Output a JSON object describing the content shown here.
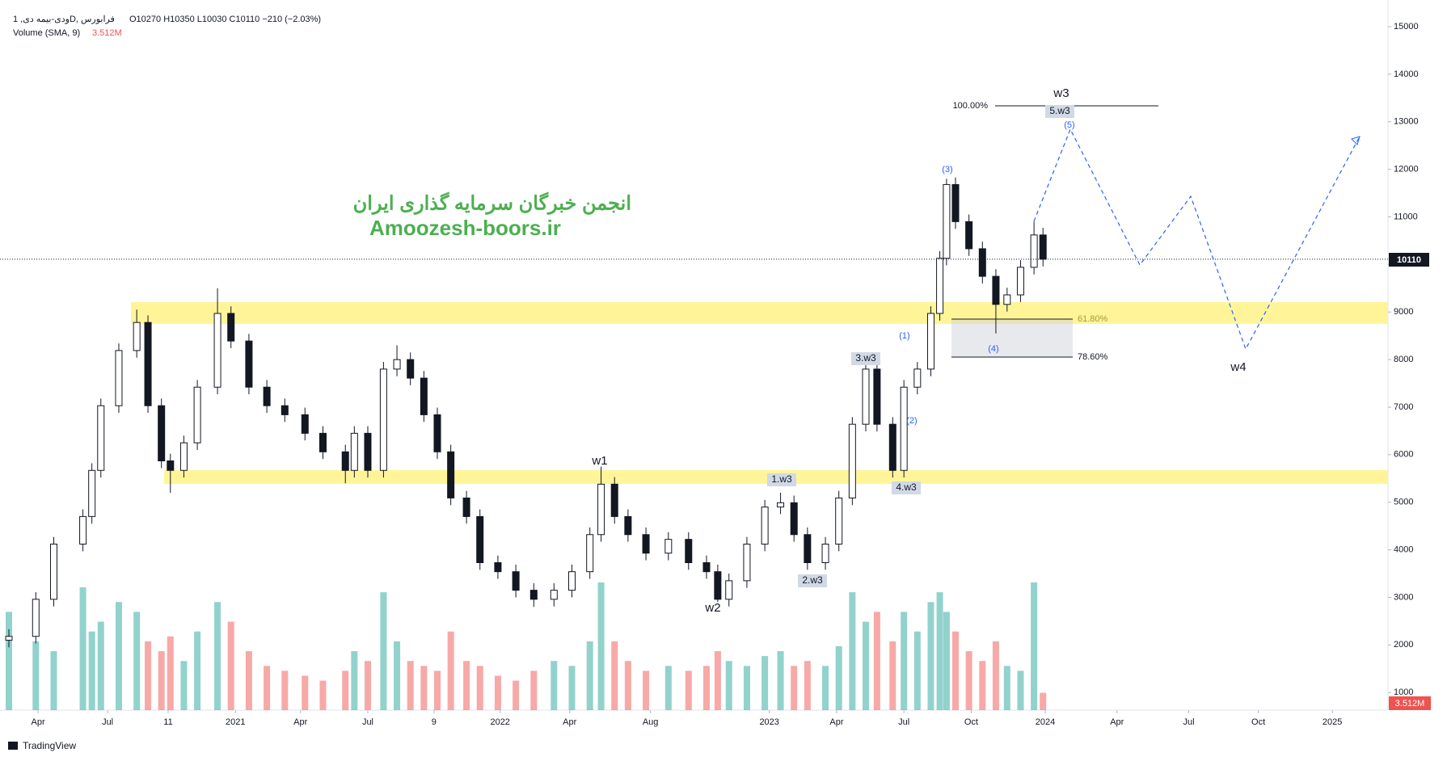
{
  "header": {
    "symbol": "ودی-بیمه دی, 1D, فرابورس",
    "ohlc": "O10270  H10350  L10030  C10110  −210 (−2.03%)",
    "volume_indicator": "Volume (SMA, 9)",
    "volume_last": "3.512M",
    "last_price": "10110"
  },
  "watermark": {
    "line1": "انجمن خبرگان سرمایه گذاری ایران",
    "line2": "Amoozesh-boors.ir"
  },
  "footer": {
    "brand": "TradingView"
  },
  "annotations": {
    "w3": "w3",
    "w3_5": "5.w3",
    "p5": "(5)",
    "p3": "(3)",
    "p1": "(1)",
    "w3_3": "3.w3",
    "p2": "(2)",
    "w3_1": "1.w3",
    "w3_4": "4.w3",
    "w1": "w1",
    "w2": "w2",
    "w3_2": "2.w3",
    "p4": "(4)",
    "w4": "w4",
    "fib100": "100.00%",
    "fib618": "61.80%",
    "fib786": "78.60%"
  },
  "chart_data": {
    "type": "candlestick",
    "x": [
      1.7,
      2.9,
      3.7,
      5.0,
      5.4,
      5.8,
      6.6,
      7.4,
      7.9,
      8.5,
      8.9,
      9.5,
      10.1,
      11.0,
      11.6,
      12.4,
      13.2,
      14.0,
      14.9,
      15.7,
      16.7,
      17.1,
      17.7,
      18.4,
      19.0,
      19.6,
      20.2,
      20.8,
      21.4,
      22.1,
      22.7,
      23.5,
      24.3,
      25.1,
      26.0,
      26.8,
      27.6,
      28.1,
      28.7,
      29.3,
      30.1,
      31.1,
      32.0,
      32.8,
      33.3,
      33.8,
      34.6,
      35.4,
      36.1,
      36.7,
      37.3,
      38.1,
      38.7,
      39.3,
      39.9,
      40.4,
      41.1,
      41.6,
      42.2,
      42.8,
      43.2,
      43.5,
      43.9,
      44.5,
      45.1,
      45.7,
      46.2,
      46.8,
      47.4,
      47.8
    ],
    "open": [
      2100,
      2180,
      2960,
      4120,
      4700,
      5670,
      7030,
      8190,
      8780,
      7030,
      5870,
      5670,
      6250,
      7420,
      8970,
      8390,
      7420,
      7030,
      6840,
      6450,
      6060,
      5670,
      6450,
      5670,
      7800,
      8000,
      7610,
      6840,
      6060,
      5090,
      4700,
      3730,
      3540,
      3150,
      2960,
      3150,
      3540,
      4320,
      5380,
      4700,
      4320,
      3930,
      4220,
      3730,
      3540,
      2960,
      3350,
      4120,
      4900,
      4990,
      4320,
      3730,
      4120,
      5090,
      6640,
      7800,
      6640,
      5670,
      7420,
      7800,
      8970,
      10130,
      11680,
      10900,
      10330,
      9750,
      9160,
      9360,
      9940,
      10620
    ],
    "high": [
      2330,
      3110,
      4270,
      4850,
      5820,
      7180,
      8340,
      9050,
      8930,
      7180,
      6020,
      6400,
      7570,
      9500,
      9120,
      8540,
      7570,
      7180,
      6990,
      6600,
      6210,
      6600,
      6600,
      7950,
      8300,
      8150,
      7760,
      6990,
      6210,
      5240,
      4850,
      3880,
      3690,
      3300,
      3300,
      3690,
      4470,
      5750,
      5530,
      4850,
      4470,
      4370,
      4370,
      3880,
      3690,
      3500,
      4270,
      5050,
      5200,
      5140,
      4470,
      4270,
      5240,
      6790,
      8000,
      7950,
      6790,
      7570,
      7950,
      9120,
      10280,
      11800,
      11830,
      11050,
      10480,
      9900,
      9510,
      10090,
      10900,
      10770
    ],
    "low": [
      1950,
      2030,
      2810,
      3970,
      4550,
      5520,
      6880,
      8040,
      6880,
      5720,
      5200,
      5520,
      6100,
      7270,
      8240,
      7270,
      6880,
      6690,
      6300,
      5910,
      5400,
      5520,
      5520,
      5520,
      7650,
      7460,
      6690,
      5910,
      4940,
      4550,
      3580,
      3390,
      3000,
      2800,
      2810,
      3000,
      3390,
      4170,
      4550,
      4170,
      3780,
      3780,
      3580,
      3390,
      2900,
      2810,
      3200,
      3970,
      4750,
      4170,
      3580,
      3580,
      3970,
      4940,
      6490,
      6490,
      5520,
      5520,
      7270,
      7650,
      8820,
      9980,
      10750,
      10180,
      9600,
      8550,
      9010,
      9210,
      9790,
      9960
    ],
    "close": [
      2180,
      2960,
      4120,
      4700,
      5670,
      7030,
      8190,
      8780,
      7030,
      5870,
      5670,
      6250,
      7420,
      8970,
      8390,
      7420,
      7030,
      6840,
      6450,
      6060,
      5670,
      6450,
      5670,
      7800,
      8000,
      7610,
      6840,
      6060,
      5090,
      4700,
      3730,
      3540,
      3150,
      2960,
      3150,
      3540,
      4320,
      5380,
      4700,
      4320,
      3930,
      4220,
      3730,
      3540,
      2960,
      3350,
      4120,
      4900,
      4990,
      4320,
      3730,
      4120,
      5090,
      6640,
      7800,
      6640,
      5670,
      7420,
      7800,
      8970,
      10130,
      11680,
      10900,
      10330,
      9750,
      9160,
      9360,
      9940,
      10620,
      10110
    ],
    "volume": [
      20,
      14,
      12,
      25,
      16,
      18,
      22,
      20,
      14,
      12,
      15,
      10,
      16,
      22,
      18,
      12,
      9,
      8,
      7,
      6,
      8,
      12,
      10,
      24,
      14,
      10,
      9,
      8,
      16,
      10,
      9,
      7,
      6,
      8,
      10,
      9,
      14,
      26,
      14,
      10,
      8,
      9,
      8,
      9,
      12,
      10,
      9,
      11,
      12,
      9,
      10,
      9,
      13,
      24,
      18,
      20,
      14,
      20,
      16,
      22,
      24,
      20,
      16,
      12,
      10,
      14,
      9,
      8,
      26,
      3.512
    ],
    "up_color": "#ffffff",
    "down_color": "#131722",
    "volume_up_color": "rgba(38,166,154,0.5)",
    "volume_down_color": "rgba(239,83,80,0.5)",
    "xlim": [
      1.7,
      63
    ],
    "ylim": [
      630,
      15560
    ],
    "vlim": [
      0,
      75
    ],
    "xticks": [
      {
        "value": 3.0,
        "label": "Apr"
      },
      {
        "value": 6.1,
        "label": "Jul"
      },
      {
        "value": 8.8,
        "label": "11"
      },
      {
        "value": 11.8,
        "label": "2021"
      },
      {
        "value": 14.7,
        "label": "Apr"
      },
      {
        "value": 17.7,
        "label": "Jul"
      },
      {
        "value": 20.65,
        "label": "9"
      },
      {
        "value": 23.6,
        "label": "2022"
      },
      {
        "value": 26.7,
        "label": "Apr"
      },
      {
        "value": 30.3,
        "label": "Aug"
      },
      {
        "value": 35.6,
        "label": "2023"
      },
      {
        "value": 38.6,
        "label": "Apr"
      },
      {
        "value": 41.6,
        "label": "Jul"
      },
      {
        "value": 44.6,
        "label": "Oct"
      },
      {
        "value": 47.9,
        "label": "2024"
      },
      {
        "value": 51.1,
        "label": "Apr"
      },
      {
        "value": 54.3,
        "label": "Jul"
      },
      {
        "value": 57.4,
        "label": "Oct"
      },
      {
        "value": 60.7,
        "label": "2025"
      }
    ],
    "yticks": [
      1000,
      2000,
      3000,
      4000,
      5000,
      6000,
      7000,
      8000,
      9000,
      10000,
      11000,
      12000,
      13000,
      14000,
      15000
    ]
  }
}
